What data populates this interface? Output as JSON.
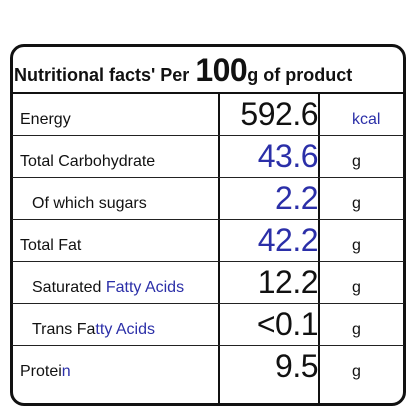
{
  "title": {
    "prefix": "Nutritional facts' Per",
    "amount": "100",
    "suffix": "g of product"
  },
  "rows": [
    {
      "label": "Energy",
      "value": "592.6",
      "unit": "kcal"
    },
    {
      "label": "Total Carbohydrate",
      "value": "43.6",
      "unit": "g"
    },
    {
      "label": "Of which sugars",
      "value": "2.2",
      "unit": "g"
    },
    {
      "label": "Total Fat",
      "value": "42.2",
      "unit": "g"
    },
    {
      "label_dark": "Saturated ",
      "label_blue": "Fatty Acids",
      "value": "12.2",
      "unit": "g"
    },
    {
      "label_dark": "Trans Fa",
      "label_blue": "tty Acids",
      "value": "<0.1",
      "unit": "g"
    },
    {
      "label_dark": "Protei",
      "label_blue": "n",
      "value": "9.5",
      "unit": "g"
    }
  ],
  "colors": {
    "ink": "#111111",
    "blue": "#2b2fa8",
    "background": "#ffffff"
  }
}
